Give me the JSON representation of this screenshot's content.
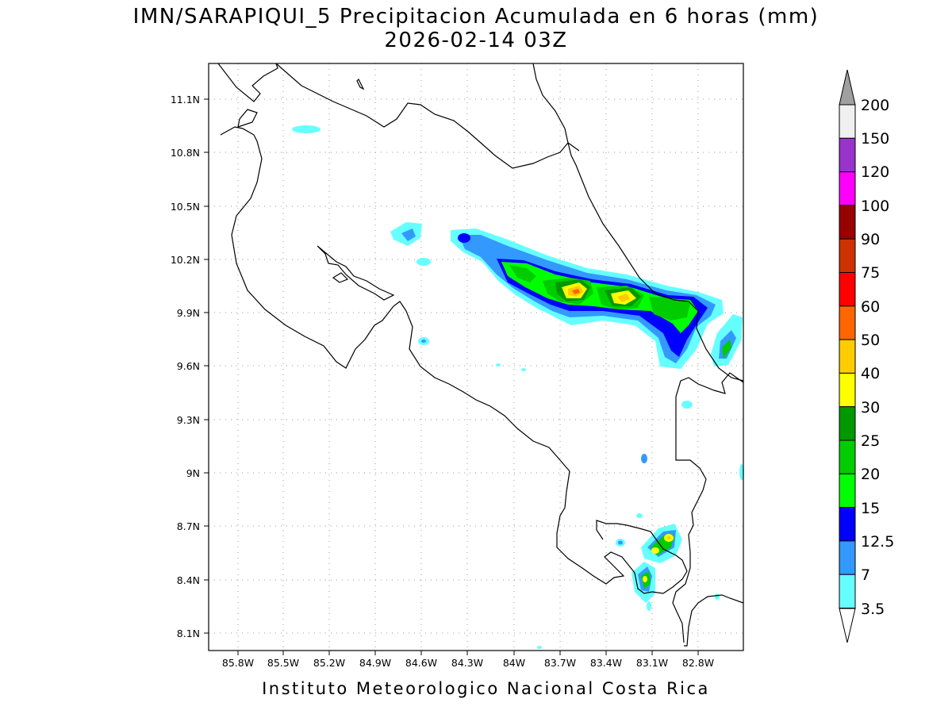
{
  "title": {
    "line1": "IMN/SARAPIQUI_5 Precipitacion Acumulada en 6 horas (mm)",
    "line2": "2026-02-14 03Z"
  },
  "footer": "Instituto Meteorologico Nacional Costa Rica",
  "map": {
    "region": "Costa Rica",
    "lon_range": [
      -86.0,
      -82.6
    ],
    "lat_range": [
      8.0,
      11.3
    ],
    "grid": true,
    "x_ticks": [
      "85.8W",
      "85.5W",
      "85.2W",
      "84.9W",
      "84.6W",
      "84.3W",
      "84W",
      "83.7W",
      "83.4W",
      "83.1W",
      "82.8W"
    ],
    "y_ticks": [
      "11.1N",
      "10.8N",
      "10.5N",
      "10.2N",
      "9.9N",
      "9.6N",
      "9.3N",
      "9N",
      "8.7N",
      "8.4N",
      "8.1N"
    ]
  },
  "colorbar": {
    "unit": "mm",
    "labels": [
      "200",
      "150",
      "120",
      "100",
      "90",
      "75",
      "60",
      "50",
      "40",
      "30",
      "25",
      "20",
      "15",
      "12.5",
      "7",
      "3.5"
    ],
    "colors": {
      "above_200": "#a0a0a0",
      "c150_200": "#f0f0f0",
      "c120_150": "#9933cc",
      "c100_120": "#ff00ff",
      "c90_100": "#990000",
      "c75_90": "#cc3300",
      "c60_75": "#ff0000",
      "c50_60": "#ff6600",
      "c40_50": "#ffcc00",
      "c30_40": "#ffff00",
      "c25_30": "#009900",
      "c20_25": "#00cc00",
      "c15_20": "#00ff00",
      "c12_15": "#0000ff",
      "c7_12": "#3399ff",
      "c3_7": "#66ffff",
      "below_3": "#ffffff"
    }
  }
}
